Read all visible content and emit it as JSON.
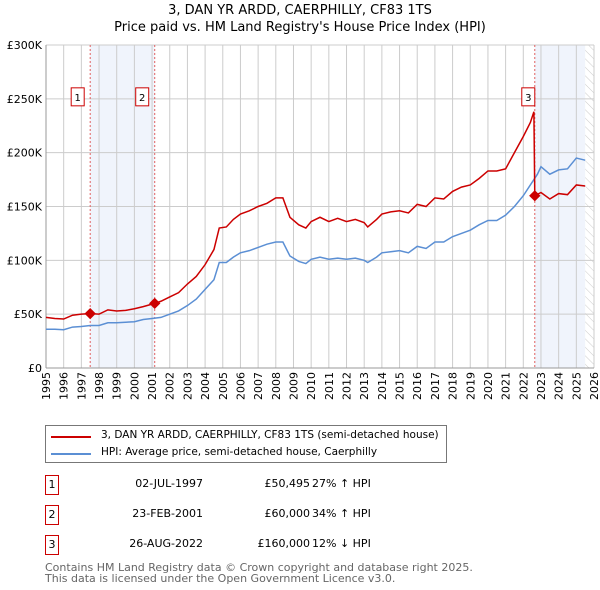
{
  "chart_data": {
    "type": "line",
    "title": "3, DAN YR ARDD, CAERPHILLY, CF83 1TS",
    "subtitle": "Price paid vs. HM Land Registry's House Price Index (HPI)",
    "xlim": [
      1995,
      2026
    ],
    "ylim": [
      0,
      300000
    ],
    "x_ticks": [
      "1995",
      "1996",
      "1997",
      "1998",
      "1999",
      "2000",
      "2001",
      "2002",
      "2003",
      "2004",
      "2005",
      "2006",
      "2007",
      "2008",
      "2009",
      "2010",
      "2011",
      "2012",
      "2013",
      "2014",
      "2015",
      "2016",
      "2017",
      "2018",
      "2019",
      "2020",
      "2021",
      "2022",
      "2023",
      "2024",
      "2025",
      "2026"
    ],
    "y_ticks": [
      {
        "v": 0,
        "l": "£0"
      },
      {
        "v": 50000,
        "l": "£50K"
      },
      {
        "v": 100000,
        "l": "£100K"
      },
      {
        "v": 150000,
        "l": "£150K"
      },
      {
        "v": 200000,
        "l": "£200K"
      },
      {
        "v": 250000,
        "l": "£250K"
      },
      {
        "v": 300000,
        "l": "£300K"
      }
    ],
    "grid": true,
    "series": [
      {
        "name": "3, DAN YR ARDD, CAERPHILLY, CF83 1TS (semi-detached house)",
        "color": "#cc0000",
        "x": [
          1995,
          1995.5,
          1996,
          1996.5,
          1997,
          1997.5,
          1998,
          1998.5,
          1999,
          1999.5,
          2000,
          2000.5,
          2001.15,
          2001.5,
          2002,
          2002.5,
          2003,
          2003.5,
          2004,
          2004.5,
          2004.8,
          2005.2,
          2005.6,
          2006,
          2006.5,
          2007,
          2007.5,
          2008,
          2008.4,
          2008.8,
          2009.3,
          2009.7,
          2010,
          2010.5,
          2011,
          2011.5,
          2012,
          2012.5,
          2013,
          2013.2,
          2013.7,
          2014,
          2014.5,
          2015,
          2015.5,
          2016,
          2016.5,
          2017,
          2017.5,
          2018,
          2018.5,
          2019,
          2019.5,
          2020,
          2020.5,
          2021,
          2021.5,
          2022,
          2022.4,
          2022.6,
          2022.65,
          2023,
          2023.5,
          2024,
          2024.5,
          2025,
          2025.5
        ],
        "y": [
          47000,
          46000,
          45500,
          49000,
          50000,
          50495,
          50000,
          54000,
          53000,
          53500,
          55000,
          57000,
          60000,
          62000,
          66000,
          70000,
          78000,
          85000,
          96000,
          110000,
          130000,
          131000,
          138000,
          143000,
          146000,
          150000,
          153000,
          158000,
          158000,
          140000,
          133000,
          130000,
          136000,
          140000,
          136000,
          139000,
          136000,
          138000,
          135000,
          131000,
          138000,
          143000,
          145000,
          146000,
          144000,
          152000,
          150000,
          158000,
          157000,
          164000,
          168000,
          170000,
          176000,
          183000,
          183000,
          185000,
          200000,
          215000,
          228000,
          238000,
          160000,
          163000,
          157000,
          162000,
          161000,
          170000,
          169000
        ]
      },
      {
        "name": "HPI: Average price, semi-detached house, Caerphilly",
        "color": "#5b8fd4",
        "x": [
          1995,
          1995.5,
          1996,
          1996.5,
          1997,
          1997.5,
          1998,
          1998.5,
          1999,
          1999.5,
          2000,
          2000.5,
          2001,
          2001.5,
          2002,
          2002.5,
          2003,
          2003.5,
          2004,
          2004.5,
          2004.8,
          2005.2,
          2005.6,
          2006,
          2006.5,
          2007,
          2007.5,
          2008,
          2008.4,
          2008.8,
          2009.3,
          2009.7,
          2010,
          2010.5,
          2011,
          2011.5,
          2012,
          2012.5,
          2013,
          2013.2,
          2013.7,
          2014,
          2014.5,
          2015,
          2015.5,
          2016,
          2016.5,
          2017,
          2017.5,
          2018,
          2018.5,
          2019,
          2019.5,
          2020,
          2020.5,
          2021,
          2021.5,
          2022,
          2022.4,
          2022.8,
          2023,
          2023.5,
          2024,
          2024.5,
          2025,
          2025.5
        ],
        "y": [
          36000,
          36000,
          35500,
          38000,
          38500,
          39500,
          39500,
          42000,
          42000,
          42500,
          43000,
          45000,
          46000,
          47000,
          50000,
          53000,
          58000,
          64000,
          73000,
          82000,
          98000,
          98000,
          103000,
          107000,
          109000,
          112000,
          115000,
          117000,
          117000,
          104000,
          99000,
          97000,
          101000,
          103000,
          101000,
          102000,
          101000,
          102000,
          100000,
          98000,
          103000,
          107000,
          108000,
          109000,
          107000,
          113000,
          111000,
          117000,
          117000,
          122000,
          125000,
          128000,
          133000,
          137000,
          137000,
          142000,
          150000,
          160000,
          170000,
          180000,
          187000,
          180000,
          184000,
          185000,
          195000,
          193000
        ]
      }
    ],
    "sales": [
      {
        "label": "1",
        "x": 1997.5,
        "price": 50495,
        "date": "02-JUL-1997",
        "price_text": "£50,495",
        "hpi_text": "27% ↑ HPI"
      },
      {
        "label": "2",
        "x": 2001.15,
        "price": 60000,
        "date": "23-FEB-2001",
        "price_text": "£60,000",
        "hpi_text": "34% ↑ HPI"
      },
      {
        "label": "3",
        "x": 2022.65,
        "price": 160000,
        "date": "26-AUG-2022",
        "price_text": "£160,000",
        "hpi_text": "12% ↓ HPI"
      }
    ],
    "data_end": 2025.5,
    "legend_placement": "bottom"
  },
  "footer": [
    "Contains HM Land Registry data © Crown copyright and database right 2025.",
    "This data is licensed under the Open Government Licence v3.0."
  ]
}
